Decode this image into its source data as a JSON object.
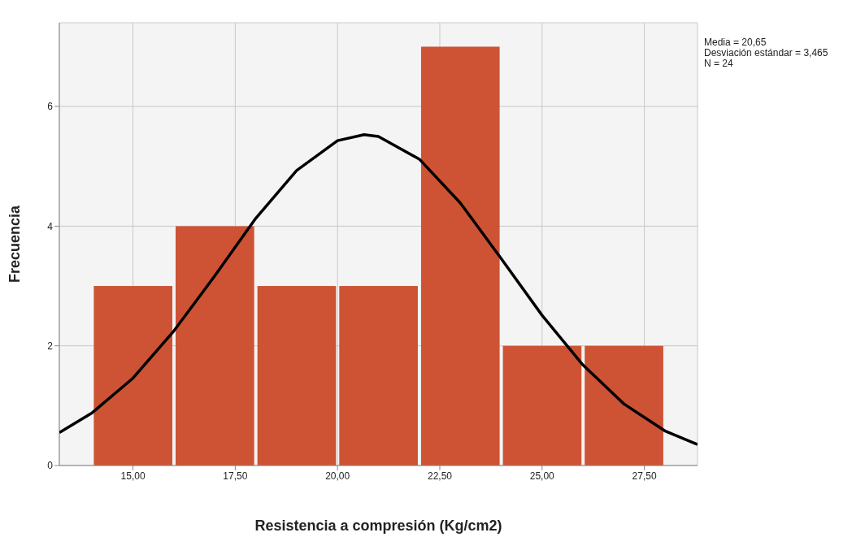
{
  "chart_data": {
    "type": "histogram",
    "xlabel": "Resistencia a compresión (Kg/cm2)",
    "ylabel": "Frecuencia",
    "bins": [
      14,
      16,
      18,
      20,
      22,
      24,
      26,
      28
    ],
    "values": [
      3,
      4,
      3,
      3,
      7,
      2,
      2
    ],
    "color": "#cd5334",
    "xlim": [
      13.2,
      28.8
    ],
    "xticks": [
      {
        "value": 15,
        "label": "15,00"
      },
      {
        "value": 17.5,
        "label": "17,50"
      },
      {
        "value": 20,
        "label": "20,00"
      },
      {
        "value": 22.5,
        "label": "22,50"
      },
      {
        "value": 25,
        "label": "25,00"
      },
      {
        "value": 27.5,
        "label": "27,50"
      }
    ],
    "ylim": [
      0,
      7.4
    ],
    "yticks": [
      0,
      2,
      4,
      6
    ],
    "grid": true,
    "series": [
      {
        "type": "line",
        "color": "#000000",
        "marker": "none",
        "line_style": "solid",
        "x": [
          13.2,
          14,
          15,
          16,
          17,
          18,
          19,
          20,
          20.65,
          21,
          22,
          23,
          24,
          25,
          26,
          27,
          28,
          28.8
        ],
        "values": [
          0.55,
          0.88,
          1.46,
          2.25,
          3.17,
          4.13,
          4.93,
          5.43,
          5.53,
          5.5,
          5.12,
          4.39,
          3.46,
          2.51,
          1.68,
          1.03,
          0.58,
          0.35
        ]
      }
    ],
    "annotations": [
      "Media = 20,65\nDesviación estándar = 3,465\nN = 24"
    ]
  }
}
